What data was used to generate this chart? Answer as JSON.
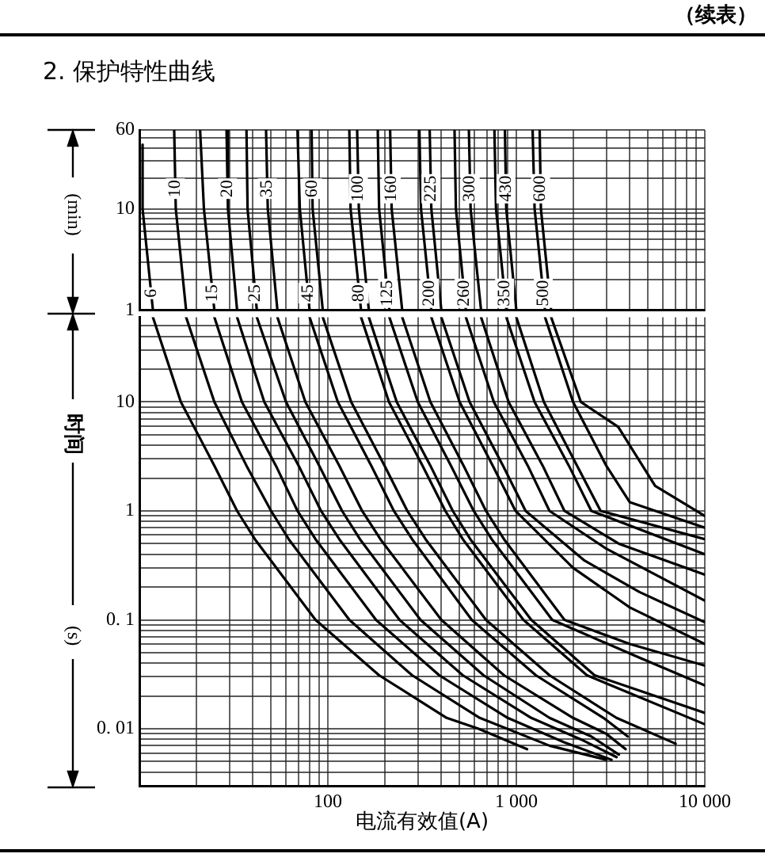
{
  "chart_data": [
    {
      "type": "line",
      "title": "2. 保护特性曲线",
      "annotations": [
        "（续表）",
        "(min)"
      ],
      "log": "xy",
      "grid": true,
      "marker": "none",
      "tick_labels": "y",
      "xlim": [
        10,
        10000
      ],
      "ylim": [
        1,
        60
      ],
      "xticks": [
        {
          "value": 20,
          "label": null
        },
        {
          "value": 30,
          "label": null
        },
        {
          "value": 40,
          "label": null
        },
        {
          "value": 50,
          "label": null
        },
        {
          "value": 60,
          "label": null
        },
        {
          "value": 70,
          "label": null
        },
        {
          "value": 80,
          "label": null
        },
        {
          "value": 90,
          "label": null
        },
        100,
        {
          "value": 200,
          "label": null
        },
        {
          "value": 300,
          "label": null
        },
        {
          "value": 400,
          "label": null
        },
        {
          "value": 500,
          "label": null
        },
        {
          "value": 600,
          "label": null
        },
        {
          "value": 700,
          "label": null
        },
        {
          "value": 800,
          "label": null
        },
        {
          "value": 900,
          "label": null
        },
        1000,
        {
          "value": 2000,
          "label": null
        },
        {
          "value": 3000,
          "label": null
        },
        {
          "value": 4000,
          "label": null
        },
        {
          "value": 5000,
          "label": null
        },
        {
          "value": 6000,
          "label": null
        },
        {
          "value": 7000,
          "label": null
        },
        {
          "value": 8000,
          "label": null
        },
        {
          "value": 9000,
          "label": null
        },
        10000
      ],
      "yticks": [
        1,
        {
          "value": 2,
          "label": null
        },
        {
          "value": 3,
          "label": null
        },
        {
          "value": 4,
          "label": null
        },
        {
          "value": 5,
          "label": null
        },
        {
          "value": 6,
          "label": null
        },
        {
          "value": 7,
          "label": null
        },
        {
          "value": 8,
          "label": null
        },
        {
          "value": 9,
          "label": null
        },
        10,
        {
          "value": 20,
          "label": null
        },
        {
          "value": 30,
          "label": null
        },
        {
          "value": 40,
          "label": null
        },
        {
          "value": 50,
          "label": null
        },
        60
      ],
      "series": [
        {
          "name": "6",
          "color": "#000000",
          "x": [
            10.4,
            10.4,
            11.8
          ],
          "values": [
            43,
            10,
            1
          ]
        },
        {
          "name": "10",
          "color": "#000000",
          "x": [
            15.3,
            15.6,
            17.7
          ],
          "values": [
            60,
            10,
            1
          ]
        },
        {
          "name": "15",
          "color": "#000000",
          "x": [
            21,
            22,
            25
          ],
          "values": [
            60,
            10,
            1
          ]
        },
        {
          "name": "20",
          "color": "#000000",
          "x": [
            29,
            29.5,
            33
          ],
          "values": [
            60,
            10,
            1
          ]
        },
        {
          "name": "25",
          "color": "#000000",
          "x": [
            37,
            37.5,
            42
          ],
          "values": [
            60,
            10,
            1
          ]
        },
        {
          "name": "35",
          "color": "#000000",
          "x": [
            47,
            48,
            54
          ],
          "values": [
            60,
            10,
            1
          ]
        },
        {
          "name": "45",
          "color": "#000000",
          "x": [
            69,
            71,
            80
          ],
          "values": [
            60,
            10,
            1
          ]
        },
        {
          "name": "60",
          "color": "#000000",
          "x": [
            82,
            83,
            94
          ],
          "values": [
            60,
            10,
            1
          ]
        },
        {
          "name": "80",
          "color": "#000000",
          "x": [
            130,
            132,
            150
          ],
          "values": [
            60,
            10,
            1
          ]
        },
        {
          "name": "100",
          "color": "#000000",
          "x": [
            143,
            146,
            165
          ],
          "values": [
            60,
            10,
            1
          ]
        },
        {
          "name": "125",
          "color": "#000000",
          "x": [
            184,
            187,
            212
          ],
          "values": [
            60,
            10,
            1
          ]
        },
        {
          "name": "160",
          "color": "#000000",
          "x": [
            214,
            218,
            248
          ],
          "values": [
            60,
            10,
            1
          ]
        },
        {
          "name": "200",
          "color": "#000000",
          "x": [
            306,
            312,
            354
          ],
          "values": [
            60,
            10,
            1
          ]
        },
        {
          "name": "225",
          "color": "#000000",
          "x": [
            347,
            354,
            400
          ],
          "values": [
            60,
            10,
            1
          ]
        },
        {
          "name": "260",
          "color": "#000000",
          "x": [
            470,
            478,
            540
          ],
          "values": [
            60,
            10,
            1
          ]
        },
        {
          "name": "300",
          "color": "#000000",
          "x": [
            560,
            572,
            650
          ],
          "values": [
            60,
            10,
            1
          ]
        },
        {
          "name": "350",
          "color": "#000000",
          "x": [
            765,
            780,
            885
          ],
          "values": [
            60,
            10,
            1
          ]
        },
        {
          "name": "430",
          "color": "#000000",
          "x": [
            870,
            884,
            1000
          ],
          "values": [
            60,
            10,
            1
          ]
        },
        {
          "name": "500",
          "color": "#000000",
          "x": [
            1220,
            1250,
            1420
          ],
          "values": [
            60,
            10,
            1
          ]
        },
        {
          "name": "600",
          "color": "#000000",
          "x": [
            1330,
            1350,
            1530
          ],
          "values": [
            60,
            10,
            1
          ]
        }
      ]
    },
    {
      "type": "line",
      "xlabel": "电流有效值(A)",
      "ylabel": "时间",
      "annotations": [
        "(s)"
      ],
      "log": "xy",
      "grid": true,
      "marker": "none",
      "xlim": [
        10,
        10000
      ],
      "ylim": [
        0.003,
        60
      ],
      "xticks": [
        {
          "value": 20,
          "label": null
        },
        {
          "value": 30,
          "label": null
        },
        {
          "value": 40,
          "label": null
        },
        {
          "value": 50,
          "label": null
        },
        {
          "value": 60,
          "label": null
        },
        {
          "value": 70,
          "label": null
        },
        {
          "value": 80,
          "label": null
        },
        {
          "value": 90,
          "label": null
        },
        100,
        {
          "value": 200,
          "label": null
        },
        {
          "value": 300,
          "label": null
        },
        {
          "value": 400,
          "label": null
        },
        {
          "value": 500,
          "label": null
        },
        {
          "value": 600,
          "label": null
        },
        {
          "value": 700,
          "label": null
        },
        {
          "value": 800,
          "label": null
        },
        {
          "value": 900,
          "label": null
        },
        {
          "value": 1000,
          "label": "1 000"
        },
        {
          "value": 2000,
          "label": null
        },
        {
          "value": 3000,
          "label": null
        },
        {
          "value": 4000,
          "label": null
        },
        {
          "value": 5000,
          "label": null
        },
        {
          "value": 6000,
          "label": null
        },
        {
          "value": 7000,
          "label": null
        },
        {
          "value": 8000,
          "label": null
        },
        {
          "value": 9000,
          "label": null
        },
        {
          "value": 10000,
          "label": "10 000"
        }
      ],
      "yticks": [
        {
          "value": 0.004,
          "label": null
        },
        {
          "value": 0.005,
          "label": null
        },
        {
          "value": 0.006,
          "label": null
        },
        {
          "value": 0.007,
          "label": null
        },
        {
          "value": 0.008,
          "label": null
        },
        {
          "value": 0.009,
          "label": null
        },
        {
          "value": 0.01,
          "label": "0. 01"
        },
        {
          "value": 0.02,
          "label": null
        },
        {
          "value": 0.03,
          "label": null
        },
        {
          "value": 0.04,
          "label": null
        },
        {
          "value": 0.05,
          "label": null
        },
        {
          "value": 0.06,
          "label": null
        },
        {
          "value": 0.07,
          "label": null
        },
        {
          "value": 0.08,
          "label": null
        },
        {
          "value": 0.09,
          "label": null
        },
        {
          "value": 0.1,
          "label": "0. 1"
        },
        {
          "value": 0.2,
          "label": null
        },
        {
          "value": 0.3,
          "label": null
        },
        {
          "value": 0.4,
          "label": null
        },
        {
          "value": 0.5,
          "label": null
        },
        {
          "value": 0.6,
          "label": null
        },
        {
          "value": 0.7,
          "label": null
        },
        {
          "value": 0.8,
          "label": null
        },
        {
          "value": 0.9,
          "label": null
        },
        1,
        {
          "value": 2,
          "label": null
        },
        {
          "value": 3,
          "label": null
        },
        {
          "value": 4,
          "label": null
        },
        {
          "value": 5,
          "label": null
        },
        {
          "value": 6,
          "label": null
        },
        {
          "value": 7,
          "label": null
        },
        {
          "value": 8,
          "label": null
        },
        {
          "value": 9,
          "label": null
        },
        10,
        {
          "value": 20,
          "label": null
        },
        {
          "value": 30,
          "label": null
        },
        {
          "value": 40,
          "label": null
        },
        {
          "value": 50,
          "label": null
        }
      ],
      "series": [
        {
          "color": "#000000",
          "x": [
            11.8,
            16.6,
            25,
            33,
            41,
            86,
            187,
            427,
            630,
            1140
          ],
          "values": [
            60,
            10,
            2.6,
            1,
            0.55,
            0.1,
            0.031,
            0.0126,
            0.01,
            0.0065
          ]
        },
        {
          "color": "#000000",
          "x": [
            17.7,
            25,
            37,
            50,
            62,
            130,
            280,
            640,
            1500,
            3000
          ],
          "values": [
            60,
            10,
            2.6,
            1,
            0.55,
            0.1,
            0.031,
            0.0126,
            0.007,
            0.0052
          ]
        },
        {
          "color": "#000000",
          "x": [
            25,
            35,
            53,
            69,
            86,
            180,
            390,
            900,
            1800,
            3200
          ],
          "values": [
            60,
            10,
            2.6,
            1,
            0.55,
            0.1,
            0.031,
            0.0126,
            0.0075,
            0.0052
          ]
        },
        {
          "color": "#000000",
          "x": [
            33,
            46,
            70,
            92,
            115,
            240,
            520,
            1200,
            2200,
            3400
          ],
          "values": [
            60,
            10,
            2.6,
            1,
            0.55,
            0.1,
            0.031,
            0.0126,
            0.008,
            0.0055
          ]
        },
        {
          "color": "#000000",
          "x": [
            42,
            60,
            90,
            119,
            148,
            310,
            670,
            1500,
            2500,
            3500
          ],
          "values": [
            60,
            10,
            2.6,
            1,
            0.55,
            0.1,
            0.031,
            0.0126,
            0.0085,
            0.0058
          ]
        },
        {
          "color": "#000000",
          "x": [
            54,
            76,
            115,
            152,
            190,
            400,
            860,
            2000,
            3000,
            3800
          ],
          "values": [
            60,
            10,
            2.6,
            1,
            0.55,
            0.1,
            0.031,
            0.0126,
            0.009,
            0.0065
          ]
        },
        {
          "color": "#000000",
          "x": [
            80,
            113,
            170,
            224,
            280,
            580,
            1270,
            2900,
            3900
          ],
          "values": [
            60,
            10,
            2.6,
            1,
            0.55,
            0.1,
            0.031,
            0.0126,
            0.0085
          ]
        },
        {
          "color": "#000000",
          "x": [
            94,
            133,
            200,
            264,
            330,
            690,
            1500,
            3400,
            7000
          ],
          "values": [
            60,
            10,
            2.6,
            1,
            0.55,
            0.1,
            0.031,
            0.0126,
            0.0073
          ]
        },
        {
          "color": "#000000",
          "x": [
            150,
            211,
            318,
            420,
            520,
            1090,
            2370,
            10000
          ],
          "values": [
            60,
            10,
            2.6,
            1,
            0.55,
            0.1,
            0.031,
            0.011
          ]
        },
        {
          "color": "#000000",
          "x": [
            165,
            232,
            350,
            460,
            570,
            1200,
            2600,
            10000
          ],
          "values": [
            60,
            10,
            2.6,
            1,
            0.55,
            0.1,
            0.031,
            0.014
          ]
        },
        {
          "color": "#000000",
          "x": [
            212,
            300,
            450,
            594,
            740,
            1550,
            4500,
            10000
          ],
          "values": [
            60,
            10,
            2.6,
            1,
            0.55,
            0.1,
            0.045,
            0.025
          ]
        },
        {
          "color": "#000000",
          "x": [
            248,
            350,
            525,
            690,
            860,
            1800,
            4000,
            10000
          ],
          "values": [
            60,
            10,
            2.6,
            1,
            0.55,
            0.1,
            0.06,
            0.038
          ]
        },
        {
          "color": "#000000",
          "x": [
            354,
            500,
            750,
            990,
            2000,
            4000,
            10000
          ],
          "values": [
            60,
            10,
            2.6,
            1,
            0.3,
            0.13,
            0.06
          ]
        },
        {
          "color": "#000000",
          "x": [
            400,
            565,
            850,
            1120,
            2300,
            4500,
            10000
          ],
          "values": [
            60,
            10,
            2.6,
            1,
            0.35,
            0.18,
            0.095
          ]
        },
        {
          "color": "#000000",
          "x": [
            540,
            760,
            1150,
            1500,
            3000,
            10000
          ],
          "values": [
            60,
            10,
            2.6,
            1,
            0.45,
            0.15
          ]
        },
        {
          "color": "#000000",
          "x": [
            650,
            910,
            1380,
            1800,
            3500,
            10000
          ],
          "values": [
            60,
            10,
            2.6,
            1,
            0.5,
            0.26
          ]
        },
        {
          "color": "#000000",
          "x": [
            885,
            1250,
            1900,
            2500,
            10000
          ],
          "values": [
            60,
            10,
            2.6,
            1,
            0.4
          ]
        },
        {
          "color": "#000000",
          "x": [
            1000,
            1400,
            2100,
            2800,
            10000
          ],
          "values": [
            60,
            10,
            2.6,
            1,
            0.55
          ]
        },
        {
          "color": "#000000",
          "x": [
            1420,
            2000,
            3000,
            4000,
            10000
          ],
          "values": [
            60,
            10,
            2.6,
            1.2,
            0.7
          ]
        },
        {
          "color": "#000000",
          "x": [
            1530,
            2200,
            3470,
            5450,
            10000
          ],
          "values": [
            60,
            10,
            5.9,
            1.7,
            0.9
          ]
        }
      ]
    }
  ]
}
